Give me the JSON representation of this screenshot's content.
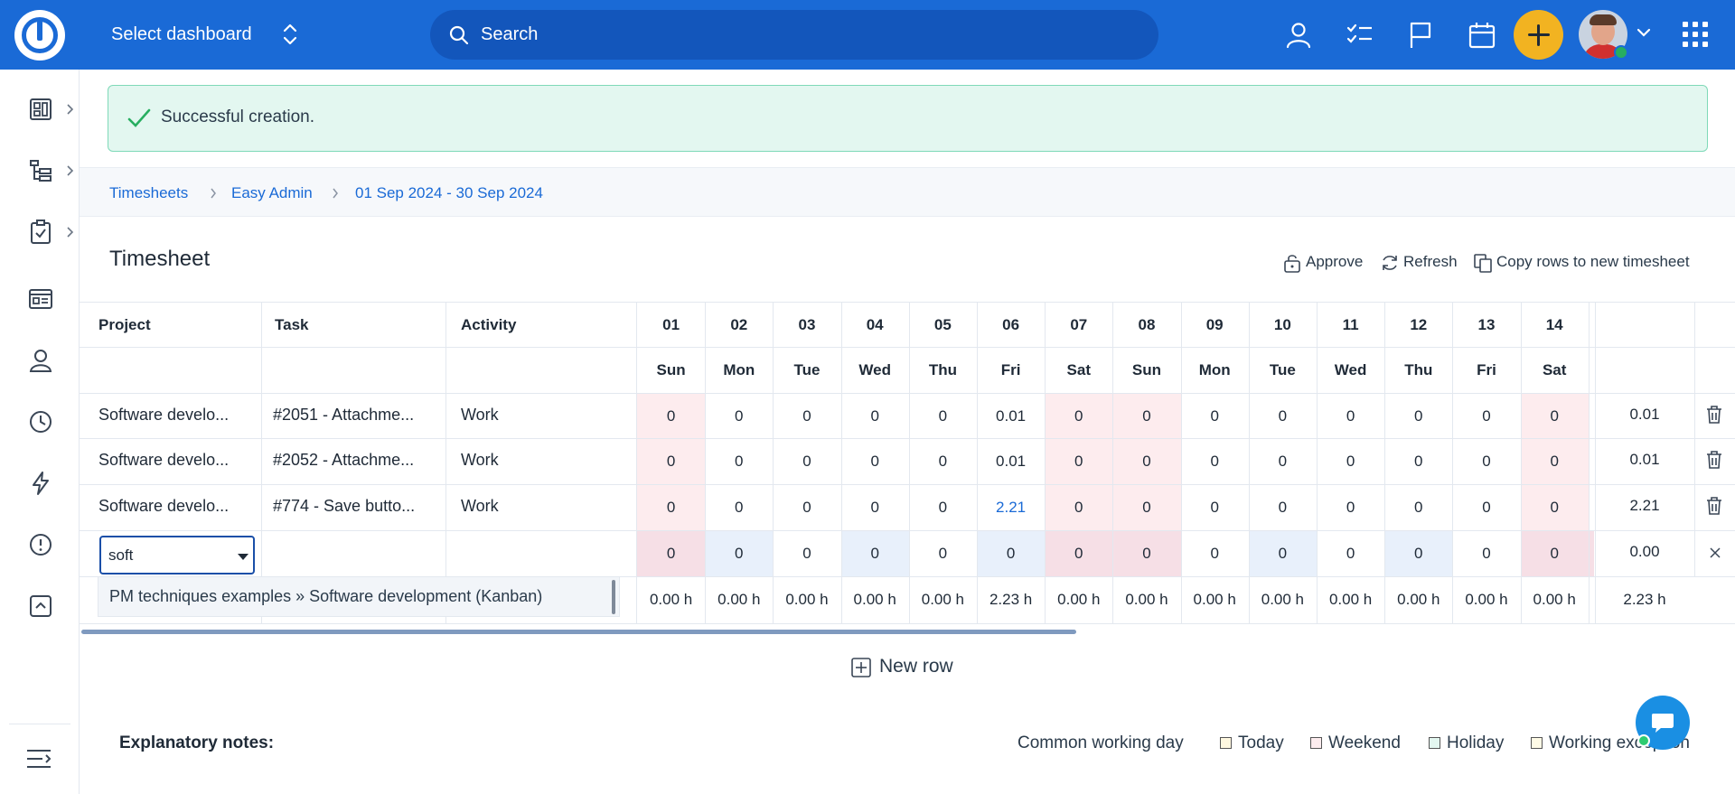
{
  "topbar": {
    "dashboard_label": "Select dashboard",
    "search_placeholder": "Search"
  },
  "flash": {
    "message": "Successful creation."
  },
  "breadcrumb": [
    "Timesheets",
    "Easy Admin",
    "01 Sep 2024 - 30 Sep 2024"
  ],
  "page": {
    "title": "Timesheet",
    "actions": {
      "approve": "Approve",
      "refresh": "Refresh",
      "copy": "Copy rows to new timesheet"
    }
  },
  "table": {
    "headers": {
      "project": "Project",
      "task": "Task",
      "activity": "Activity"
    },
    "days": [
      "01",
      "02",
      "03",
      "04",
      "05",
      "06",
      "07",
      "08",
      "09",
      "10",
      "11",
      "12",
      "13",
      "14"
    ],
    "weekdays": [
      "Sun",
      "Mon",
      "Tue",
      "Wed",
      "Thu",
      "Fri",
      "Sat",
      "Sun",
      "Mon",
      "Tue",
      "Wed",
      "Thu",
      "Fri",
      "Sat"
    ],
    "rows": [
      {
        "project": "Software develo...",
        "task": "#2051 - Attachme...",
        "activity": "Work",
        "values": [
          "0",
          "0",
          "0",
          "0",
          "0",
          "0.01",
          "0",
          "0",
          "0",
          "0",
          "0",
          "0",
          "0",
          "0"
        ],
        "total": "0.01"
      },
      {
        "project": "Software develo...",
        "task": "#2052 - Attachme...",
        "activity": "Work",
        "values": [
          "0",
          "0",
          "0",
          "0",
          "0",
          "0.01",
          "0",
          "0",
          "0",
          "0",
          "0",
          "0",
          "0",
          "0"
        ],
        "total": "0.01"
      },
      {
        "project": "Software develo...",
        "task": "#774 - Save butto...",
        "activity": "Work",
        "values": [
          "0",
          "0",
          "0",
          "0",
          "0",
          "2.21",
          "0",
          "0",
          "0",
          "0",
          "0",
          "0",
          "0",
          "0"
        ],
        "total": "2.21"
      }
    ],
    "new_row": {
      "project_input": "soft",
      "values": [
        "0",
        "0",
        "0",
        "0",
        "0",
        "0",
        "0",
        "0",
        "0",
        "0",
        "0",
        "0",
        "0",
        "0"
      ],
      "total": "0.00"
    },
    "dropdown_option": "PM techniques examples » Software development (Kanban)",
    "day_totals": [
      "0.00 h",
      "0.00 h",
      "0.00 h",
      "0.00 h",
      "0.00 h",
      "2.23 h",
      "0.00 h",
      "0.00 h",
      "0.00 h",
      "0.00 h",
      "0.00 h",
      "0.00 h",
      "0.00 h",
      "0.00 h"
    ],
    "grand_total": "2.23 h"
  },
  "new_row_button": "New row",
  "notes": {
    "title": "Explanatory notes:",
    "legend": [
      "Common working day",
      "Today",
      "Weekend",
      "Holiday",
      "Working exception"
    ]
  },
  "colors": {
    "accent": "#1a6ad6",
    "weekend": "#fdecee",
    "success": "#e3f7f0"
  }
}
